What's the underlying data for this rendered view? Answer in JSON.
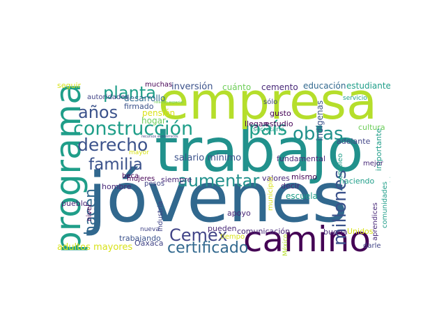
{
  "colors": {
    "c_lime": "#b5de2b",
    "c_teal": "#21918c",
    "c_blue": "#31688e",
    "c_indigo": "#3b528b",
    "c_purple": "#440154",
    "c_darkpurple": "#482878",
    "c_green": "#35b779",
    "c_seafoam": "#1f9e89",
    "c_yellow": "#d8e219",
    "c_lightgreen": "#6ece58",
    "c_greyblue": "#414487"
  },
  "words": {
    "jovenes": "jóvenes",
    "trabajo": "trabajo",
    "empresa": "empresa",
    "programa": "programa",
    "camino": "camino",
    "construccion": "construcción",
    "pais": "país",
    "obras": "obras",
    "planta": "planta",
    "anos": "años",
    "derecho": "derecho",
    "familia": "familia",
    "aumentar": "aumentar",
    "millones": "millones",
    "cemex": "Cemex",
    "certificado": "certificado",
    "hacen": "hacen",
    "adultos_mayores": "adultos mayores",
    "salario_minimo": "salario mínimo",
    "inversion": "inversión",
    "desarrollo": "desarrollo",
    "firmado": "firmado",
    "pension": "pensión",
    "hogar": "hogar",
    "muchas": "muchas",
    "cuanto": "cuánto",
    "cemento": "cemento",
    "educacion": "educación",
    "estudiantes": "estudiantes",
    "seguir": "seguir",
    "autoridades": "autoridades",
    "recursos_economicos": "recursos económicos",
    "relacion_especial": "relación especial",
    "servicio": "servicio",
    "secretaria": "secretaría",
    "gusto": "gusto",
    "llegan": "llegan",
    "estudio": "estudio",
    "sólo": "sólo",
    "indigenas": "indígenas",
    "cultura": "cultura",
    "importante": "importante",
    "adelante": "adelante",
    "fundamental": "fundamental",
    "mayor": "mayor",
    "beca": "beca",
    "mujeres": "mujeres",
    "pesos": "pesos",
    "siempre": "siempre",
    "valores": "valores",
    "mismo": "mismo",
    "decir": "decir",
    "haciendo": "haciendo",
    "mejor": "mejor",
    "empleo": "empleo",
    "bien": "bien",
    "hombre": "hombre",
    "pueblo": "pueblo",
    "nivel": "nivel",
    "apoyo": "apoyo",
    "escuela": "escuela",
    "industria": "industria",
    "municipio": "municipio",
    "comunidades": "comunidades",
    "aprendices": "aprendices",
    "nueva": "nueva",
    "pueden": "pueden",
    "comunicacion": "comunicación",
    "buena": "buena",
    "unidos": "Unidos",
    "tiempo": "tiempo",
    "trabajando": "trabajando",
    "oaxaca": "Oaxaca",
    "darle": "darle",
    "mexico": "México"
  }
}
